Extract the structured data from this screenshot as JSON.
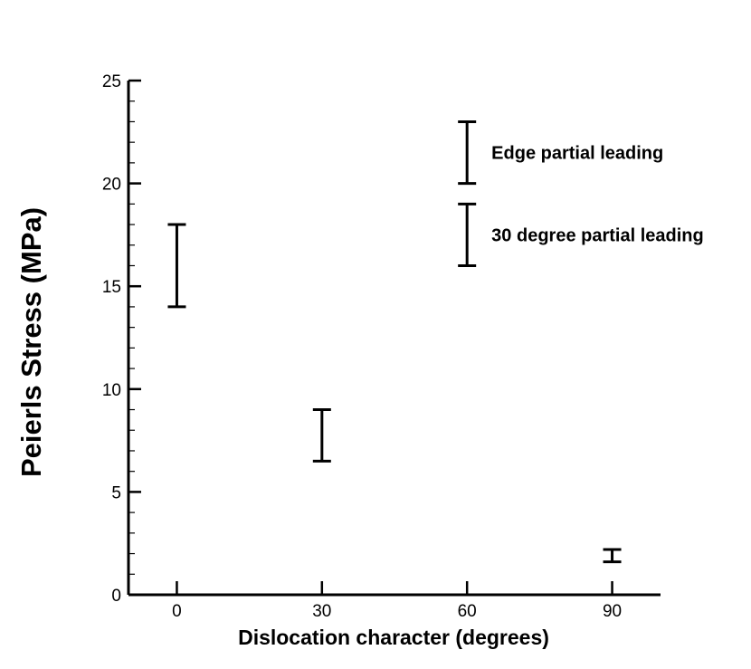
{
  "chart_data": {
    "type": "scatter",
    "title": "",
    "xlabel": "Dislocation character (degrees)",
    "ylabel": "Peierls Stress (MPa)",
    "xlim": [
      -10,
      100
    ],
    "ylim": [
      0,
      25
    ],
    "x_ticks": [
      0,
      30,
      60,
      90
    ],
    "y_ticks": [
      0,
      5,
      10,
      15,
      20,
      25
    ],
    "y_minor_step": 1,
    "grid": false,
    "error_bars": [
      {
        "x": 0,
        "low": 14,
        "high": 18
      },
      {
        "x": 30,
        "low": 6.5,
        "high": 9
      },
      {
        "x": 60,
        "low": 20,
        "high": 23,
        "label": "Edge partial leading"
      },
      {
        "x": 60,
        "low": 16,
        "high": 19,
        "label": "30 degree partial leading"
      },
      {
        "x": 90,
        "low": 1.6,
        "high": 2.2
      }
    ]
  }
}
